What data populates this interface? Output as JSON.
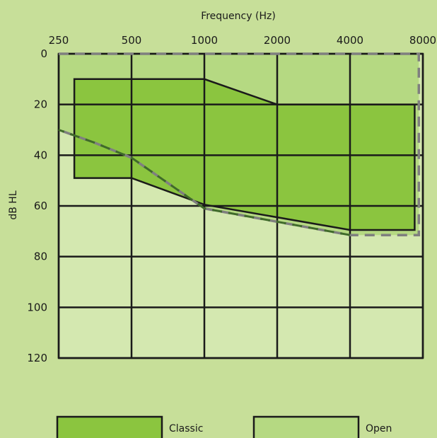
{
  "chart_data": {
    "type": "area",
    "title": "",
    "xlabel": "Frequency (Hz)",
    "ylabel": "dB HL",
    "x_scale": "log2",
    "x_ticks": [
      250,
      500,
      1000,
      2000,
      4000,
      8000
    ],
    "x_tick_labels": [
      "250",
      "500",
      "1000",
      "2000",
      "4000",
      "8000"
    ],
    "y_ticks": [
      0,
      20,
      40,
      60,
      80,
      100,
      120
    ],
    "y_tick_labels": [
      "0",
      "20",
      "40",
      60,
      "80",
      "100",
      "120"
    ],
    "xlim": [
      250,
      8000
    ],
    "ylim": [
      0,
      120
    ],
    "y_inverted": true,
    "grid": true,
    "legend_position": "bottom",
    "series": [
      {
        "name": "Open",
        "color": "#b5d982",
        "style": "dashed outline",
        "polygon": [
          [
            250,
            0
          ],
          [
            7700,
            0
          ],
          [
            7700,
            71.5
          ],
          [
            4000,
            71.5
          ],
          [
            1000,
            61
          ],
          [
            500,
            41
          ],
          [
            350,
            35
          ],
          [
            250,
            30
          ]
        ]
      },
      {
        "name": "Classic",
        "color": "#8bc53f",
        "style": "solid outline",
        "polygon": [
          [
            290,
            10
          ],
          [
            1000,
            10
          ],
          [
            2000,
            20
          ],
          [
            7400,
            20
          ],
          [
            7400,
            69.5
          ],
          [
            4000,
            69.5
          ],
          [
            1000,
            59.5
          ],
          [
            500,
            49
          ],
          [
            290,
            49
          ]
        ]
      }
    ],
    "legend": [
      "Classic",
      "Open"
    ]
  }
}
